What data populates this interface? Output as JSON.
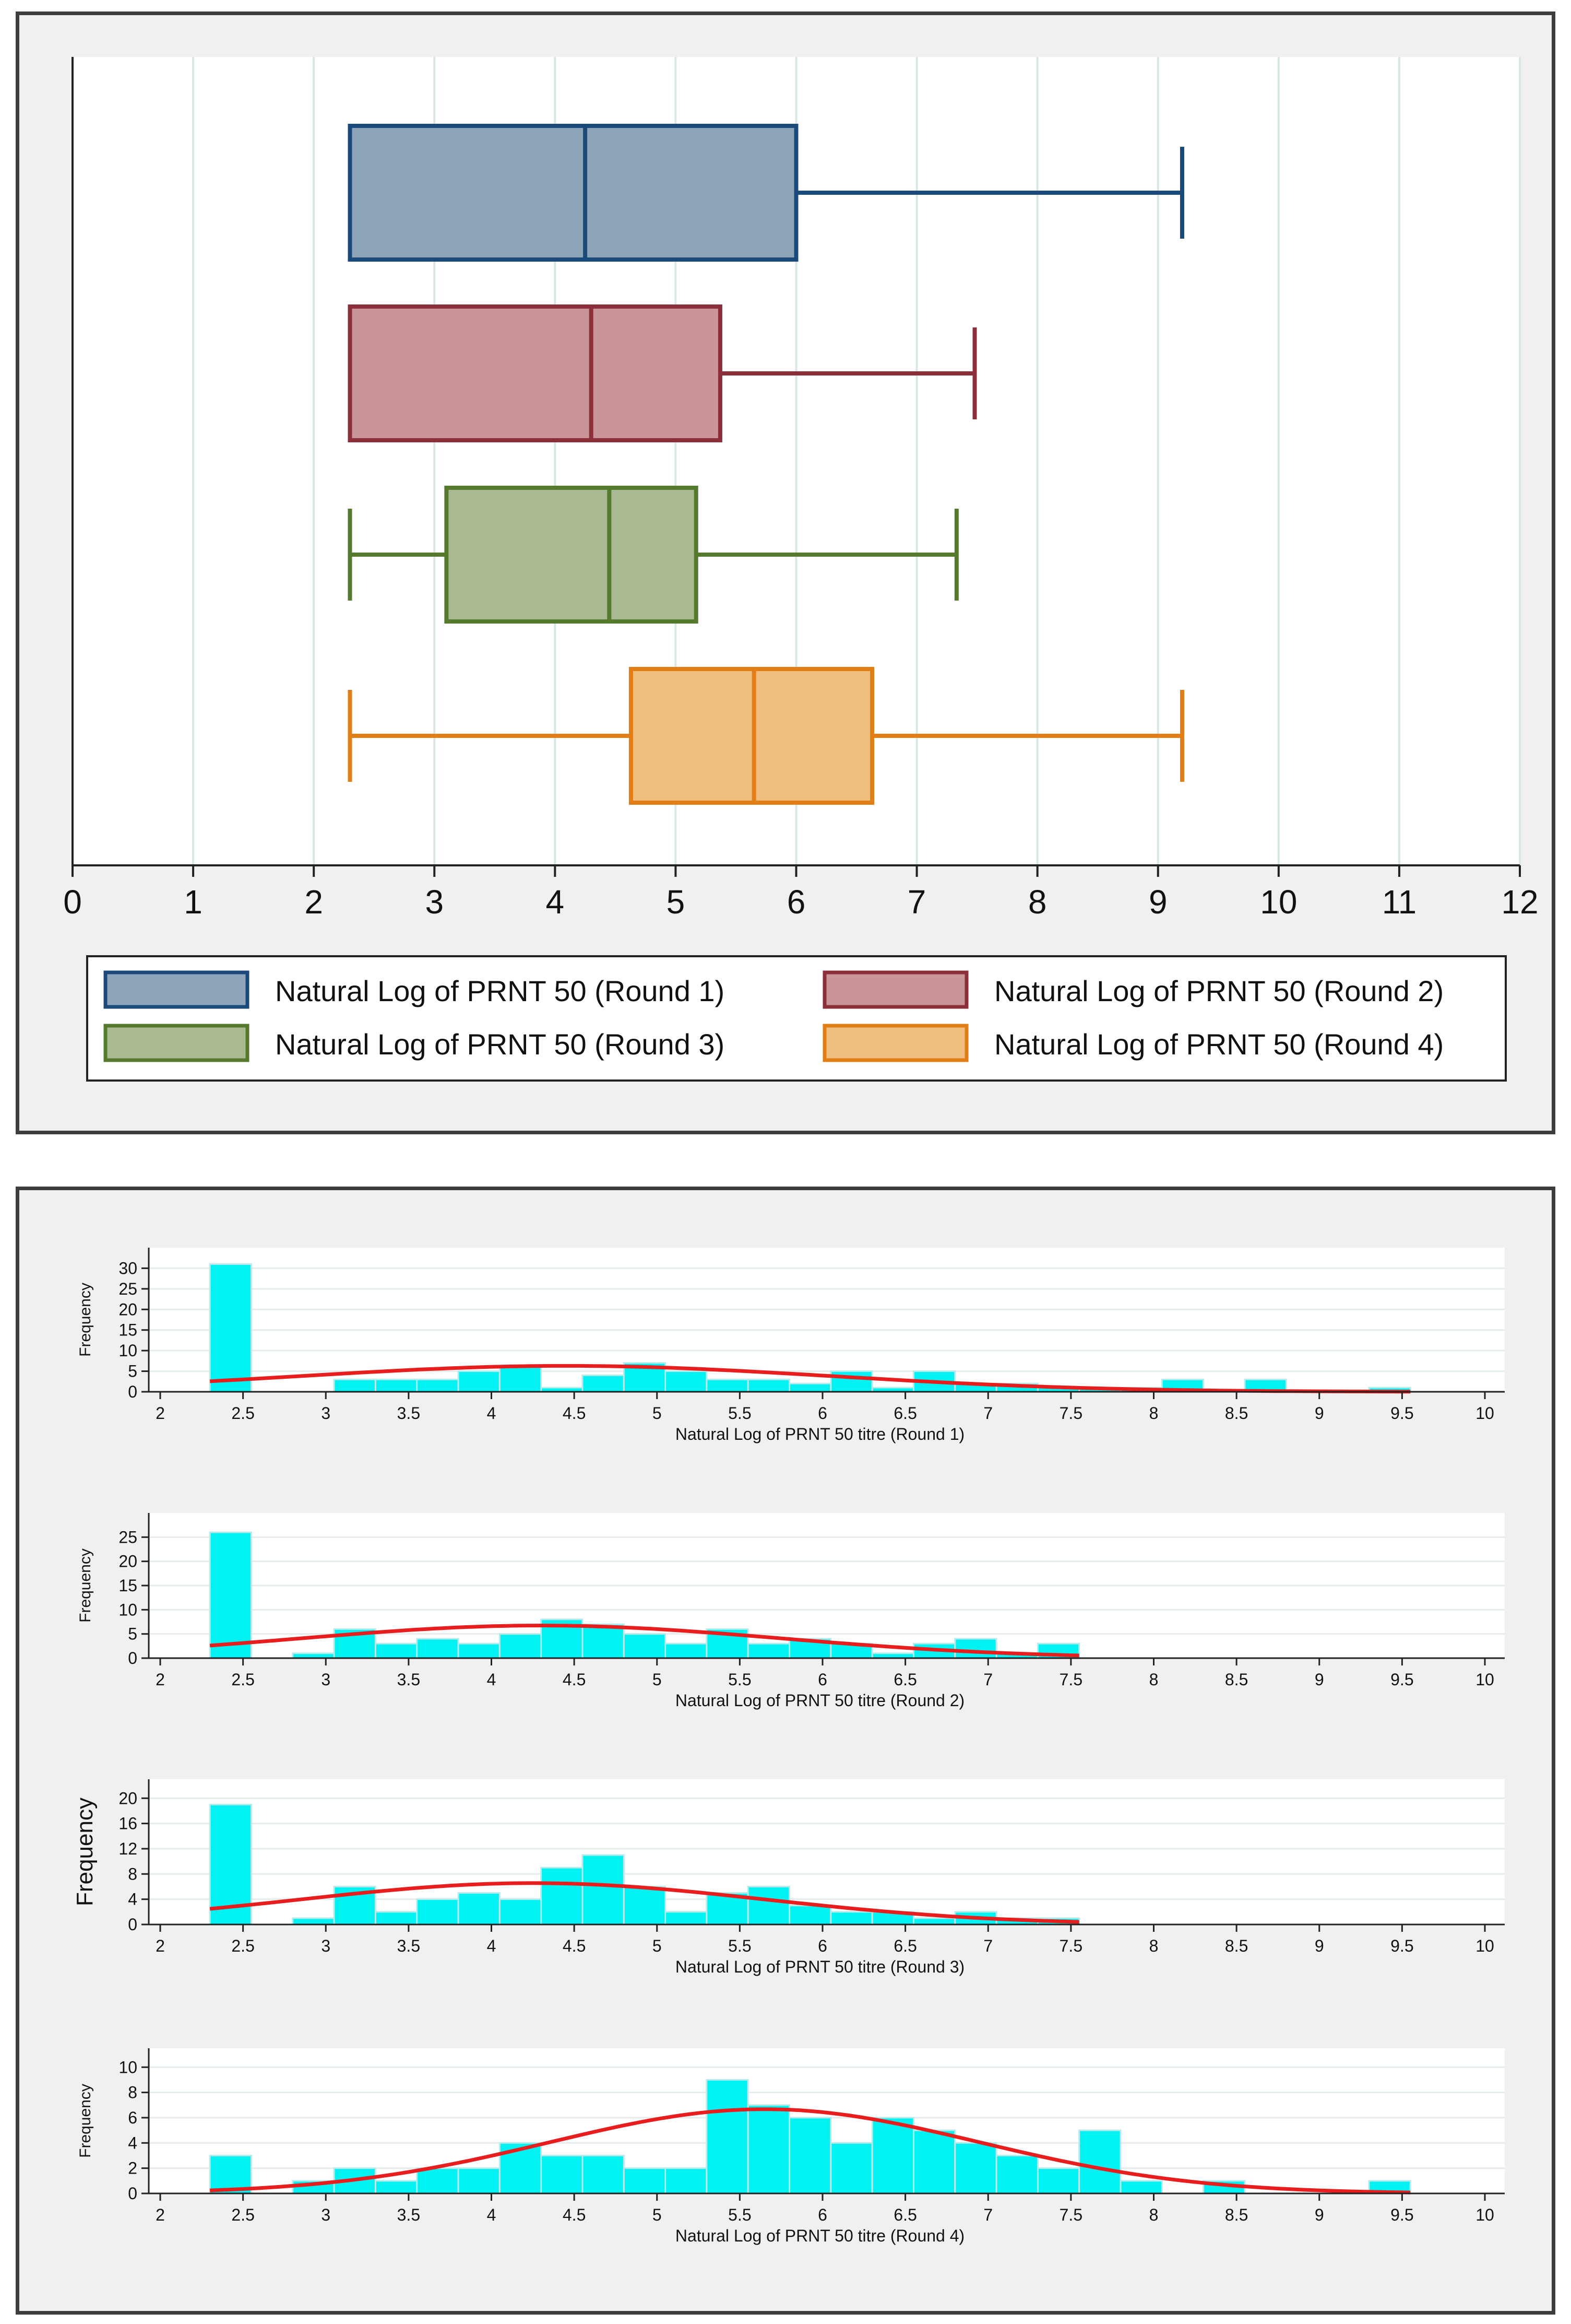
{
  "chart_data": [
    {
      "type": "boxplot",
      "orientation": "horizontal",
      "title": "",
      "xlabel": "",
      "ylabel": "",
      "xlim": [
        0,
        12
      ],
      "xticks": [
        0,
        1,
        2,
        3,
        4,
        5,
        6,
        7,
        8,
        9,
        10,
        11,
        12
      ],
      "grid": "vertical",
      "legend_position": "bottom",
      "series": [
        {
          "name": "Natural Log of PRNT 50 (Round 1)",
          "color": "#1b4a7a",
          "fill": "#8ea4b9",
          "whisker_low": 2.3,
          "q1": 2.3,
          "median": 4.25,
          "q3": 6.0,
          "whisker_high": 9.2
        },
        {
          "name": "Natural Log of PRNT 50 (Round 2)",
          "color": "#8c2f3a",
          "fill": "#c99599",
          "whisker_low": 2.3,
          "q1": 2.3,
          "median": 4.3,
          "q3": 5.37,
          "whisker_high": 7.48
        },
        {
          "name": "Natural Log of PRNT 50 (Round 3)",
          "color": "#55792d",
          "fill": "#a9ba93",
          "whisker_low": 2.3,
          "q1": 3.1,
          "median": 4.45,
          "q3": 5.17,
          "whisker_high": 7.33
        },
        {
          "name": "Natural Log of PRNT 50 (Round 4)",
          "color": "#e27e16",
          "fill": "#f0bf80",
          "whisker_low": 2.3,
          "q1": 4.63,
          "median": 5.65,
          "q3": 6.63,
          "whisker_high": 9.2
        }
      ]
    },
    {
      "type": "histogram",
      "xlabel": "Natural Log of PRNT 50 titre (Round 1)",
      "ylabel": "Frequency",
      "xlim": [
        2,
        10
      ],
      "xticks": [
        "2",
        "2.5",
        "3",
        "3.5",
        "4",
        "4.5",
        "5",
        "5.5",
        "6",
        "6.5",
        "7",
        "7.5",
        "8",
        "8.5",
        "9",
        "9.5",
        "10"
      ],
      "yticks": [
        "0",
        "5",
        "10",
        "15",
        "20",
        "25",
        "30"
      ],
      "ylim": [
        0,
        35
      ],
      "bin_start": 2.3,
      "bin_width": 0.25,
      "counts": [
        31,
        0,
        0,
        3,
        3,
        3,
        5,
        6,
        1,
        4,
        7,
        5,
        3,
        3,
        2,
        5,
        1,
        5,
        2,
        2,
        1,
        1,
        1,
        3,
        0,
        3,
        0,
        0,
        1
      ],
      "density_curve": {
        "mean": 4.45,
        "sd": 1.6,
        "n": 101,
        "color": "#e81e1e"
      }
    },
    {
      "type": "histogram",
      "xlabel": "Natural Log of PRNT 50 titre (Round 2)",
      "ylabel": "Frequency",
      "xlim": [
        2,
        10
      ],
      "xticks": [
        "2",
        "2.5",
        "3",
        "3.5",
        "4",
        "4.5",
        "5",
        "5.5",
        "6",
        "6.5",
        "7",
        "7.5",
        "8",
        "8.5",
        "9",
        "9.5",
        "10"
      ],
      "yticks": [
        "0",
        "5",
        "10",
        "15",
        "20",
        "25"
      ],
      "ylim": [
        0,
        30
      ],
      "bin_start": 2.3,
      "bin_width": 0.25,
      "counts": [
        26,
        0,
        1,
        6,
        3,
        4,
        3,
        5,
        8,
        7,
        5,
        3,
        6,
        3,
        4,
        3,
        1,
        3,
        4,
        1,
        3
      ],
      "density_curve": {
        "mean": 4.3,
        "sd": 1.45,
        "n": 98,
        "color": "#e81e1e"
      }
    },
    {
      "type": "histogram",
      "xlabel": "Natural Log of PRNT 50 titre (Round 3)",
      "ylabel": "Frequency",
      "xlim": [
        2,
        10
      ],
      "xticks": [
        "2",
        "2.5",
        "3",
        "3.5",
        "4",
        "4.5",
        "5",
        "5.5",
        "6",
        "6.5",
        "7",
        "7.5",
        "8",
        "8.5",
        "9",
        "9.5",
        "10"
      ],
      "yticks": [
        "0",
        "4",
        "8",
        "12",
        "16",
        "20"
      ],
      "ylim": [
        0,
        23
      ],
      "bin_start": 2.3,
      "bin_width": 0.25,
      "counts": [
        19,
        0,
        1,
        6,
        2,
        4,
        5,
        4,
        9,
        11,
        6,
        2,
        5,
        6,
        3,
        2,
        2,
        1,
        2,
        1,
        1
      ],
      "density_curve": {
        "mean": 4.25,
        "sd": 1.4,
        "n": 92,
        "color": "#e81e1e"
      }
    },
    {
      "type": "histogram",
      "xlabel": "Natural Log of PRNT 50 titre (Round 4)",
      "ylabel": "Frequency",
      "xlim": [
        2,
        10
      ],
      "xticks": [
        "2",
        "2.5",
        "3",
        "3.5",
        "4",
        "4.5",
        "5",
        "5.5",
        "6",
        "6.5",
        "7",
        "7.5",
        "8",
        "8.5",
        "9",
        "9.5",
        "10"
      ],
      "yticks": [
        "0",
        "2",
        "4",
        "6",
        "8",
        "10"
      ],
      "ylim": [
        0,
        11.5
      ],
      "bin_start": 2.3,
      "bin_width": 0.25,
      "counts": [
        3,
        0,
        1,
        2,
        1,
        2,
        2,
        4,
        3,
        3,
        2,
        2,
        9,
        7,
        6,
        4,
        6,
        5,
        4,
        3,
        2,
        5,
        1,
        0,
        1,
        0,
        0,
        0,
        1
      ],
      "density_curve": {
        "mean": 5.65,
        "sd": 1.3,
        "n": 87,
        "color": "#e81e1e"
      }
    }
  ]
}
